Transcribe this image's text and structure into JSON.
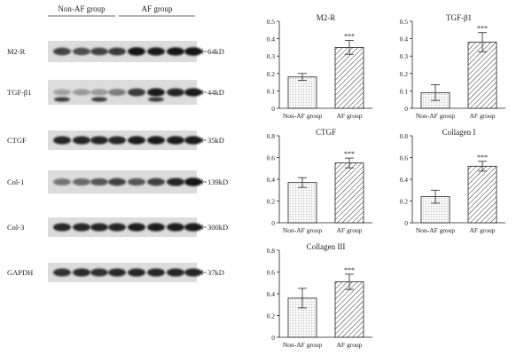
{
  "blot_panel": {
    "group_labels": [
      "Non-AF group",
      "AF group"
    ],
    "rows": [
      {
        "name": "M2-R",
        "size": "64kD"
      },
      {
        "name": "TGF-β1",
        "size": "44kD"
      },
      {
        "name": "CTGF",
        "size": "35kD"
      },
      {
        "name": "Col-1",
        "size": "139kD"
      },
      {
        "name": "Col-3",
        "size": "300kD"
      },
      {
        "name": "GAPDH",
        "size": "37kD"
      }
    ]
  },
  "chart_data": [
    {
      "type": "bar",
      "title": "M2-R",
      "categories": [
        "Non-AF group",
        "AF group"
      ],
      "values": [
        0.18,
        0.35
      ],
      "errors": [
        0.02,
        0.04
      ],
      "annotation": "***",
      "ylim": [
        0,
        0.5
      ],
      "yticks": [
        "0",
        "0.1",
        "0.2",
        "0.3",
        "0.4",
        "0.5"
      ],
      "ytick_values": [
        0,
        0.1,
        0.2,
        0.3,
        0.4,
        0.5
      ]
    },
    {
      "type": "bar",
      "title": "TGF-β1",
      "categories": [
        "Non-AF group",
        "AF group"
      ],
      "values": [
        0.09,
        0.38
      ],
      "errors": [
        0.045,
        0.055
      ],
      "annotation": "***",
      "ylim": [
        0,
        0.5
      ],
      "yticks": [
        "0",
        "0.1",
        "0.2",
        "0.3",
        "0.4",
        "0.5"
      ],
      "ytick_values": [
        0,
        0.1,
        0.2,
        0.3,
        0.4,
        0.5
      ]
    },
    {
      "type": "bar",
      "title": "CTGF",
      "categories": [
        "Non-AF group",
        "AF group"
      ],
      "values": [
        0.37,
        0.55
      ],
      "errors": [
        0.045,
        0.045
      ],
      "annotation": "***",
      "ylim": [
        0,
        0.8
      ],
      "yticks": [
        "0",
        "0.2",
        "0.4",
        "0.6",
        "0.8"
      ],
      "ytick_values": [
        0,
        0.2,
        0.4,
        0.6,
        0.8
      ]
    },
    {
      "type": "bar",
      "title": "Collagen I",
      "categories": [
        "Non-AF group",
        "AF group"
      ],
      "values": [
        0.24,
        0.52
      ],
      "errors": [
        0.06,
        0.045
      ],
      "annotation": "***",
      "ylim": [
        0,
        0.8
      ],
      "yticks": [
        "0",
        "0.2",
        "0.4",
        "0.6",
        "0.8"
      ],
      "ytick_values": [
        0,
        0.2,
        0.4,
        0.6,
        0.8
      ]
    },
    {
      "type": "bar",
      "title": "Collagen III",
      "categories": [
        "Non-AF group",
        "AF group"
      ],
      "values": [
        0.36,
        0.51
      ],
      "errors": [
        0.09,
        0.07
      ],
      "annotation": "***",
      "ylim": [
        0,
        0.8
      ],
      "yticks": [
        "0",
        "0.2",
        "0.4",
        "0.6",
        "0.8"
      ],
      "ytick_values": [
        0,
        0.2,
        0.4,
        0.6,
        0.8
      ]
    }
  ]
}
